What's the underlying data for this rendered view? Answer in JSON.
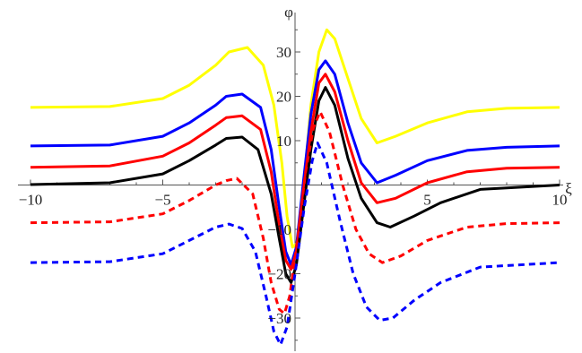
{
  "chart_data": {
    "type": "line",
    "xlabel": "ξ",
    "ylabel": "φ",
    "xlim": [
      -10,
      10
    ],
    "ylim": [
      -37,
      38
    ],
    "grid": false,
    "x_ticks": [
      {
        "value": -10,
        "label": "−10"
      },
      {
        "value": -5,
        "label": "−5"
      },
      {
        "value": 5,
        "label": "5"
      },
      {
        "value": 10,
        "label": "10"
      }
    ],
    "y_ticks": [
      {
        "value": 30,
        "label": "30"
      },
      {
        "value": 20,
        "label": "20"
      },
      {
        "value": 10,
        "label": "10"
      },
      {
        "value": -10,
        "label": "−10"
      },
      {
        "value": -20,
        "label": "−20"
      },
      {
        "value": -30,
        "label": "−30"
      }
    ],
    "series": [
      {
        "color": "#ffff00",
        "dash": "solid",
        "points": [
          [
            -10,
            17.5
          ],
          [
            -7,
            17.7
          ],
          [
            -5,
            19.5
          ],
          [
            -4,
            22.5
          ],
          [
            -3,
            27
          ],
          [
            -2.5,
            30
          ],
          [
            -1.8,
            31
          ],
          [
            -1.2,
            27
          ],
          [
            -0.8,
            18
          ],
          [
            -0.5,
            5
          ],
          [
            -0.3,
            -7
          ],
          [
            -0.1,
            -14
          ],
          [
            0.1,
            -13
          ],
          [
            0.3,
            -2
          ],
          [
            0.6,
            18
          ],
          [
            0.9,
            30
          ],
          [
            1.2,
            35
          ],
          [
            1.5,
            33
          ],
          [
            2,
            24
          ],
          [
            2.5,
            15
          ],
          [
            3.1,
            9.5
          ],
          [
            3.8,
            11
          ],
          [
            5,
            14
          ],
          [
            6.5,
            16.5
          ],
          [
            8,
            17.3
          ],
          [
            10,
            17.5
          ]
        ]
      },
      {
        "color": "#0000ff",
        "dash": "solid",
        "points": [
          [
            -10,
            8.8
          ],
          [
            -7,
            9
          ],
          [
            -5,
            11
          ],
          [
            -4,
            14
          ],
          [
            -3,
            18
          ],
          [
            -2.6,
            20
          ],
          [
            -2,
            20.5
          ],
          [
            -1.3,
            17.5
          ],
          [
            -0.9,
            8
          ],
          [
            -0.6,
            -5
          ],
          [
            -0.35,
            -15
          ],
          [
            -0.15,
            -18
          ],
          [
            0.05,
            -14
          ],
          [
            0.3,
            0
          ],
          [
            0.6,
            16
          ],
          [
            0.9,
            26
          ],
          [
            1.15,
            28
          ],
          [
            1.5,
            25
          ],
          [
            2,
            14
          ],
          [
            2.5,
            5
          ],
          [
            3.1,
            0.5
          ],
          [
            3.8,
            2.2
          ],
          [
            5,
            5.5
          ],
          [
            6.5,
            7.8
          ],
          [
            8,
            8.5
          ],
          [
            10,
            8.8
          ]
        ]
      },
      {
        "color": "#ff0000",
        "dash": "solid",
        "points": [
          [
            -10,
            4
          ],
          [
            -7,
            4.3
          ],
          [
            -5,
            6.5
          ],
          [
            -4,
            9.5
          ],
          [
            -3,
            13.5
          ],
          [
            -2.6,
            15.2
          ],
          [
            -2,
            15.6
          ],
          [
            -1.3,
            12.5
          ],
          [
            -0.9,
            3
          ],
          [
            -0.6,
            -9
          ],
          [
            -0.35,
            -17
          ],
          [
            -0.15,
            -19
          ],
          [
            0.05,
            -15
          ],
          [
            0.3,
            -2
          ],
          [
            0.6,
            12
          ],
          [
            0.9,
            23
          ],
          [
            1.15,
            25
          ],
          [
            1.5,
            21
          ],
          [
            2,
            10
          ],
          [
            2.5,
            0.5
          ],
          [
            3.1,
            -4
          ],
          [
            3.8,
            -3
          ],
          [
            5,
            0.5
          ],
          [
            6.5,
            3
          ],
          [
            8,
            3.8
          ],
          [
            10,
            4
          ]
        ]
      },
      {
        "color": "#000000",
        "dash": "solid",
        "points": [
          [
            -10,
            0.1
          ],
          [
            -7,
            0.5
          ],
          [
            -5,
            2.5
          ],
          [
            -4,
            5.5
          ],
          [
            -3,
            9
          ],
          [
            -2.6,
            10.5
          ],
          [
            -2,
            10.8
          ],
          [
            -1.4,
            8
          ],
          [
            -0.9,
            -2
          ],
          [
            -0.6,
            -12
          ],
          [
            -0.35,
            -20
          ],
          [
            -0.15,
            -22
          ],
          [
            0.05,
            -18
          ],
          [
            0.3,
            -6
          ],
          [
            0.6,
            8
          ],
          [
            0.9,
            19
          ],
          [
            1.15,
            22
          ],
          [
            1.5,
            18
          ],
          [
            2,
            6
          ],
          [
            2.5,
            -3
          ],
          [
            3.1,
            -8.5
          ],
          [
            3.6,
            -9.5
          ],
          [
            4.5,
            -7
          ],
          [
            5.5,
            -4
          ],
          [
            7,
            -1
          ],
          [
            10,
            0
          ]
        ]
      },
      {
        "color": "#ff0000",
        "dash": "dashed",
        "points": [
          [
            -10,
            -8.5
          ],
          [
            -7,
            -8.3
          ],
          [
            -5,
            -6.5
          ],
          [
            -4,
            -3.5
          ],
          [
            -3,
            0
          ],
          [
            -2.6,
            1
          ],
          [
            -2.2,
            1.5
          ],
          [
            -1.6,
            -2
          ],
          [
            -1.2,
            -12
          ],
          [
            -0.9,
            -22
          ],
          [
            -0.6,
            -28
          ],
          [
            -0.4,
            -29
          ],
          [
            -0.2,
            -25
          ],
          [
            0.1,
            -12
          ],
          [
            0.4,
            3
          ],
          [
            0.7,
            13
          ],
          [
            0.95,
            16.5
          ],
          [
            1.3,
            12
          ],
          [
            1.8,
            0
          ],
          [
            2.3,
            -10
          ],
          [
            2.8,
            -15.5
          ],
          [
            3.3,
            -17.5
          ],
          [
            4,
            -16
          ],
          [
            5,
            -12.5
          ],
          [
            6.5,
            -9.5
          ],
          [
            8,
            -8.7
          ],
          [
            10,
            -8.5
          ]
        ]
      },
      {
        "color": "#0000ff",
        "dash": "dashed",
        "points": [
          [
            -10,
            -17.5
          ],
          [
            -7,
            -17.3
          ],
          [
            -5,
            -15.5
          ],
          [
            -4,
            -12.5
          ],
          [
            -3,
            -9.5
          ],
          [
            -2.5,
            -8.8
          ],
          [
            -2,
            -9.8
          ],
          [
            -1.5,
            -15
          ],
          [
            -1.1,
            -25
          ],
          [
            -0.8,
            -33
          ],
          [
            -0.55,
            -36
          ],
          [
            -0.3,
            -32
          ],
          [
            0,
            -20
          ],
          [
            0.35,
            -5
          ],
          [
            0.65,
            5.5
          ],
          [
            0.85,
            9.5
          ],
          [
            1.2,
            5
          ],
          [
            1.7,
            -8
          ],
          [
            2.2,
            -20
          ],
          [
            2.7,
            -27.5
          ],
          [
            3.2,
            -30.5
          ],
          [
            3.7,
            -30
          ],
          [
            4.5,
            -26
          ],
          [
            5.5,
            -22
          ],
          [
            7,
            -18.5
          ],
          [
            10,
            -17.5
          ]
        ]
      }
    ]
  }
}
